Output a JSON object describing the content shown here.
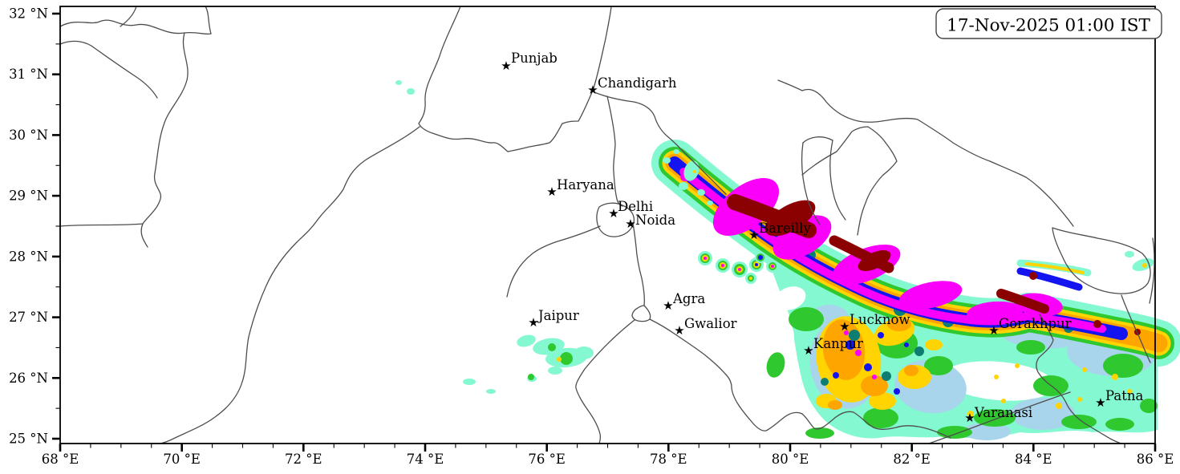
{
  "timestamp_box": {
    "timestamp": "17-Nov-2025 01:00 IST"
  },
  "axes": {
    "lat_labels": [
      "32 °N",
      "31 °N",
      "30 °N",
      "29 °N",
      "28 °N",
      "27 °N",
      "26 °N",
      "25 °N"
    ],
    "lon_labels": [
      "68 °E",
      "70 °E",
      "72 °E",
      "74 °E",
      "76 °E",
      "78 °E",
      "80 °E",
      "82 °E",
      "84 °E",
      "86 °E"
    ],
    "lat_range_deg_n": [
      25,
      32
    ],
    "lon_range_deg_e": [
      68,
      86
    ]
  },
  "map": {
    "marker_glyph": "★"
  },
  "cities": [
    {
      "name": "Punjab",
      "approx_lon_e": 75.35,
      "approx_lat_n": 31.15
    },
    {
      "name": "Chandigarh",
      "approx_lon_e": 76.75,
      "approx_lat_n": 30.75
    },
    {
      "name": "Haryana",
      "approx_lon_e": 76.1,
      "approx_lat_n": 29.05
    },
    {
      "name": "Delhi",
      "approx_lon_e": 77.1,
      "approx_lat_n": 28.7
    },
    {
      "name": "Noida",
      "approx_lon_e": 77.4,
      "approx_lat_n": 28.55
    },
    {
      "name": "Bareilly",
      "approx_lon_e": 79.4,
      "approx_lat_n": 28.35
    },
    {
      "name": "Agra",
      "approx_lon_e": 78.0,
      "approx_lat_n": 27.2
    },
    {
      "name": "Jaipur",
      "approx_lon_e": 75.8,
      "approx_lat_n": 26.9
    },
    {
      "name": "Gwalior",
      "approx_lon_e": 78.2,
      "approx_lat_n": 26.8
    },
    {
      "name": "Lucknow",
      "approx_lon_e": 80.9,
      "approx_lat_n": 26.85
    },
    {
      "name": "Kanpur",
      "approx_lon_e": 80.3,
      "approx_lat_n": 26.45
    },
    {
      "name": "Gorakhpur",
      "approx_lon_e": 83.35,
      "approx_lat_n": 26.8
    },
    {
      "name": "Varanasi",
      "approx_lon_e": 82.95,
      "approx_lat_n": 25.35
    },
    {
      "name": "Patna",
      "approx_lon_e": 85.1,
      "approx_lat_n": 25.6
    }
  ],
  "colors": {
    "background": "#FFFFFF",
    "boundary_lines": "#4D4D4D",
    "frame": "#000000",
    "city_marker": "#000000",
    "rain_intensity_scale_low_to_high": [
      "#84F8D0",
      "#A8D4EC",
      "#2FC82F",
      "#FFD400",
      "#FFA500",
      "#0E7D72",
      "#1414F0",
      "#FA00FA",
      "#8B0000"
    ]
  }
}
